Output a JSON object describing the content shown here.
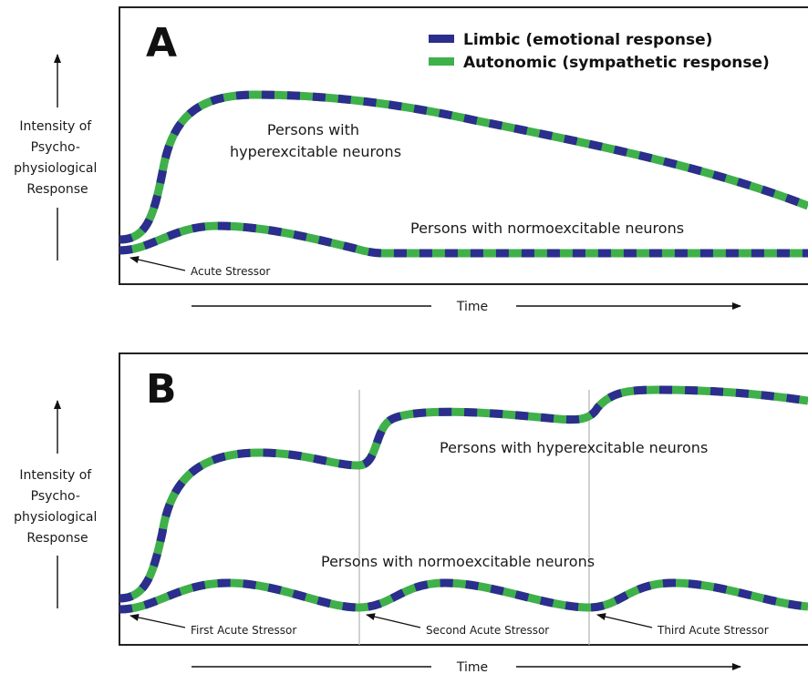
{
  "colors": {
    "limbic": "#2b2e8c",
    "autonomic": "#3fb04a"
  },
  "legend": {
    "limbic_label": "Limbic (emotional response)",
    "autonomic_label": "Autonomic (sympathetic response)"
  },
  "panel_a": {
    "letter": "A",
    "ylabel_lines": [
      "Intensity of",
      "Psycho-",
      "physiological",
      "Response"
    ],
    "hyper_label_lines": [
      "Persons with",
      "hyperexcitable neurons"
    ],
    "normo_label": "Persons with normoexcitable neurons",
    "stressor_label": "Acute Stressor",
    "time_label": "Time"
  },
  "panel_b": {
    "letter": "B",
    "ylabel_lines": [
      "Intensity of",
      "Psycho-",
      "physiological",
      "Response"
    ],
    "hyper_label": "Persons with hyperexcitable neurons",
    "normo_label": "Persons with normoexcitable neurons",
    "stressor_labels": [
      "First Acute Stressor",
      "Second Acute Stressor",
      "Third Acute Stressor"
    ],
    "time_label": "Time"
  }
}
